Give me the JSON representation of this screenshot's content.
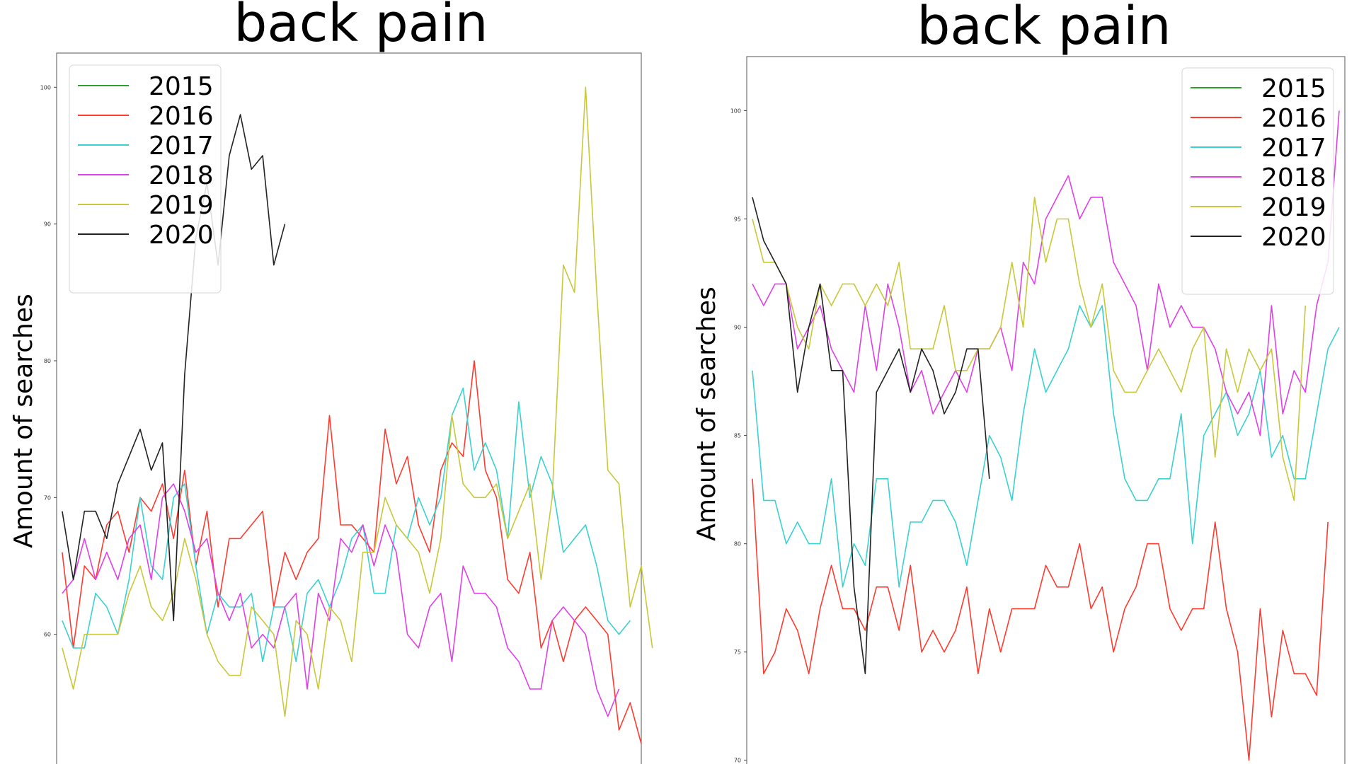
{
  "chart_data": [
    {
      "type": "line",
      "title": "back pain",
      "xlabel": "",
      "ylabel": "Amount of searches",
      "ylim": [
        50,
        102.5
      ],
      "yticks": [
        60,
        70,
        80,
        90,
        100
      ],
      "xlim": [
        -0.5,
        52
      ],
      "grid": false,
      "legend_position": "top-left",
      "series": [
        {
          "name": "2015",
          "color": "#2ca02c",
          "values": []
        },
        {
          "name": "2016",
          "color": "#ff3b30",
          "values": [
            66,
            59,
            65,
            64,
            68,
            69,
            66,
            70,
            69,
            71,
            67,
            72,
            65,
            69,
            62,
            67,
            67,
            68,
            69,
            62,
            66,
            64,
            66,
            67,
            76,
            68,
            68,
            67,
            66,
            75,
            71,
            73,
            68,
            66,
            72,
            74,
            73,
            80,
            72,
            70,
            64,
            63,
            66,
            59,
            61,
            58,
            61,
            62,
            61,
            60,
            53,
            55,
            52
          ]
        },
        {
          "name": "2017",
          "color": "#3ad1d1",
          "values": [
            61,
            59,
            59,
            63,
            62,
            60,
            64,
            70,
            65,
            64,
            70,
            71,
            65,
            60,
            63,
            62,
            62,
            63,
            58,
            62,
            62,
            58,
            63,
            64,
            62,
            64,
            67,
            68,
            63,
            63,
            68,
            67,
            70,
            68,
            70,
            76,
            78,
            72,
            74,
            72,
            67,
            77,
            70,
            73,
            71,
            66,
            67,
            68,
            65,
            61,
            60,
            61
          ]
        },
        {
          "name": "2018",
          "color": "#e040e8",
          "values": [
            63,
            64,
            67,
            64,
            66,
            64,
            67,
            68,
            64,
            70,
            71,
            69,
            66,
            67,
            63,
            61,
            63,
            59,
            60,
            59,
            62,
            63,
            56,
            63,
            61,
            67,
            66,
            68,
            65,
            68,
            66,
            60,
            59,
            62,
            63,
            58,
            65,
            63,
            63,
            62,
            59,
            58,
            56,
            56,
            61,
            62,
            61,
            60,
            56,
            54,
            56
          ]
        },
        {
          "name": "2019",
          "color": "#c8c83a",
          "values": [
            59,
            56,
            60,
            60,
            60,
            60,
            63,
            65,
            62,
            61,
            63,
            67,
            64,
            60,
            58,
            57,
            57,
            62,
            61,
            60,
            54,
            61,
            60,
            56,
            62,
            61,
            58,
            66,
            66,
            70,
            68,
            67,
            66,
            63,
            67,
            76,
            71,
            70,
            70,
            71,
            67,
            69,
            71,
            64,
            70,
            87,
            85,
            100,
            85,
            72,
            71,
            62,
            65,
            59
          ]
        },
        {
          "name": "2020",
          "color": "#222222",
          "values": [
            69,
            64,
            69,
            69,
            67,
            71,
            73,
            75,
            72,
            74,
            61,
            79,
            89,
            93,
            87,
            95,
            98,
            94,
            95,
            87,
            90
          ]
        }
      ]
    },
    {
      "type": "line",
      "title": "back pain",
      "xlabel": "",
      "ylabel": "Amount of searches",
      "ylim": [
        69.5,
        102.5
      ],
      "yticks": [
        70,
        75,
        80,
        85,
        90,
        95,
        100
      ],
      "xlim": [
        -0.5,
        52.5
      ],
      "grid": false,
      "legend_position": "top-right",
      "series": [
        {
          "name": "2015",
          "color": "#2ca02c",
          "values": []
        },
        {
          "name": "2016",
          "color": "#ff3b30",
          "values": [
            83,
            74,
            75,
            77,
            76,
            74,
            77,
            79,
            77,
            77,
            76,
            78,
            78,
            76,
            79,
            75,
            76,
            75,
            76,
            78,
            74,
            77,
            75,
            77,
            77,
            77,
            79,
            78,
            78,
            80,
            77,
            78,
            75,
            77,
            78,
            80,
            80,
            77,
            76,
            77,
            77,
            81,
            77,
            75,
            70,
            77,
            72,
            76,
            74,
            74,
            73,
            81
          ]
        },
        {
          "name": "2017",
          "color": "#3ad1d1",
          "values": [
            88,
            82,
            82,
            80,
            81,
            80,
            80,
            83,
            78,
            80,
            79,
            83,
            83,
            78,
            81,
            81,
            82,
            82,
            81,
            79,
            82,
            85,
            84,
            82,
            86,
            89,
            87,
            88,
            89,
            91,
            90,
            91,
            86,
            83,
            82,
            82,
            83,
            83,
            86,
            80,
            85,
            86,
            87,
            85,
            86,
            88,
            84,
            85,
            83,
            83,
            86,
            89,
            90
          ]
        },
        {
          "name": "2018",
          "color": "#e040e8",
          "values": [
            92,
            91,
            92,
            92,
            89,
            90,
            91,
            89,
            88,
            87,
            91,
            88,
            92,
            90,
            87,
            88,
            86,
            87,
            88,
            87,
            89,
            89,
            90,
            88,
            93,
            92,
            95,
            96,
            97,
            95,
            96,
            96,
            93,
            92,
            91,
            88,
            92,
            90,
            91,
            90,
            90,
            89,
            87,
            86,
            87,
            85,
            91,
            86,
            88,
            87,
            91,
            93,
            100
          ]
        },
        {
          "name": "2019",
          "color": "#c8c83a",
          "values": [
            95,
            93,
            93,
            92,
            90,
            89,
            92,
            91,
            92,
            92,
            91,
            92,
            91,
            93,
            89,
            89,
            89,
            91,
            88,
            88,
            89,
            89,
            90,
            93,
            90,
            96,
            93,
            95,
            95,
            92,
            90,
            92,
            88,
            87,
            87,
            88,
            89,
            88,
            87,
            89,
            90,
            84,
            89,
            87,
            89,
            88,
            89,
            84,
            82,
            91
          ]
        },
        {
          "name": "2020",
          "color": "#222222",
          "values": [
            96,
            94,
            93,
            92,
            87,
            90,
            92,
            88,
            88,
            78,
            74,
            87,
            88,
            89,
            87,
            89,
            88,
            86,
            87,
            89,
            89,
            83
          ]
        }
      ]
    }
  ]
}
